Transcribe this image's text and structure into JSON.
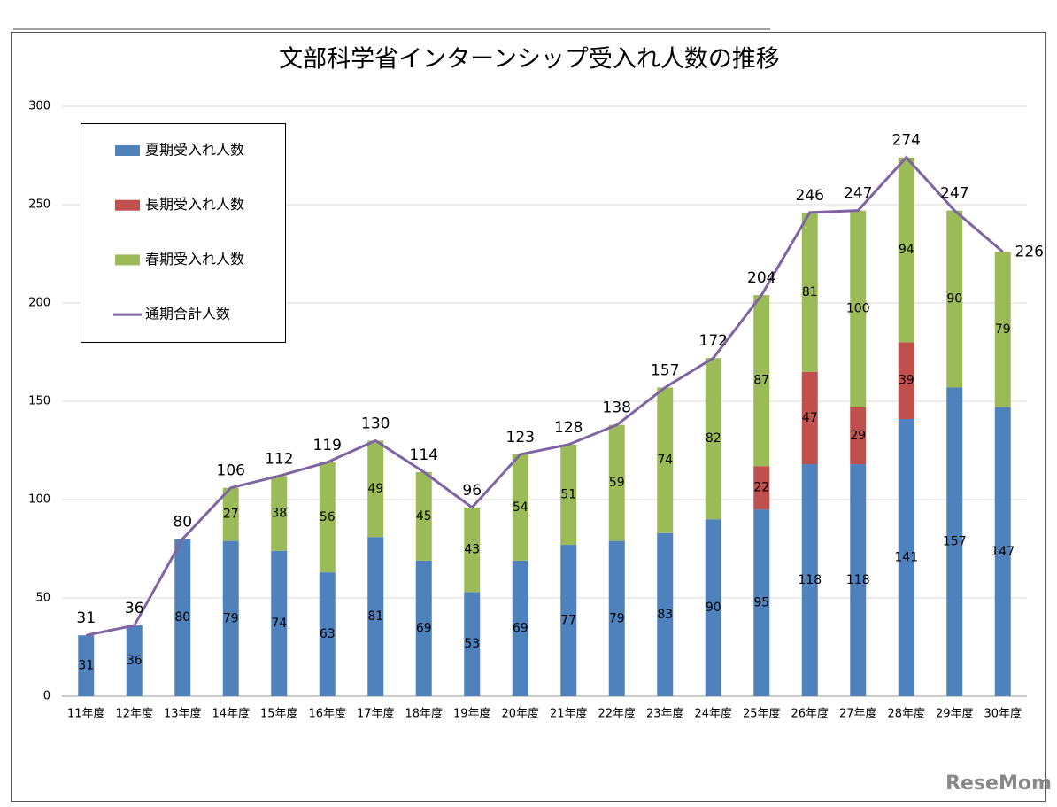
{
  "chart_data": {
    "type": "bar",
    "stacked": true,
    "title": "文部科学省インターンシップ受入れ人数の推移",
    "watermark": "ReseMom",
    "categories": [
      "11年度",
      "12年度",
      "13年度",
      "14年度",
      "15年度",
      "16年度",
      "17年度",
      "18年度",
      "19年度",
      "20年度",
      "21年度",
      "22年度",
      "23年度",
      "24年度",
      "25年度",
      "26年度",
      "27年度",
      "28年度",
      "29年度",
      "30年度"
    ],
    "series": [
      {
        "name": "夏期受入れ人数",
        "color": "#4f81bd",
        "values": [
          31,
          36,
          80,
          79,
          74,
          63,
          81,
          69,
          53,
          69,
          77,
          79,
          83,
          90,
          95,
          118,
          118,
          141,
          157,
          147
        ]
      },
      {
        "name": "長期受入れ人数",
        "color": "#c0504d",
        "values": [
          null,
          null,
          null,
          null,
          null,
          null,
          null,
          null,
          null,
          null,
          null,
          null,
          null,
          null,
          22,
          47,
          29,
          39,
          null,
          null
        ]
      },
      {
        "name": "春期受入れ人数",
        "color": "#9bbb59",
        "values": [
          null,
          null,
          null,
          27,
          38,
          56,
          49,
          45,
          43,
          54,
          51,
          59,
          74,
          82,
          87,
          81,
          100,
          94,
          90,
          79
        ]
      },
      {
        "name": "通期合計人数",
        "color": "#8064a2",
        "type": "line",
        "values": [
          31,
          36,
          80,
          106,
          112,
          119,
          130,
          114,
          96,
          123,
          128,
          138,
          157,
          172,
          204,
          246,
          247,
          274,
          247,
          226
        ]
      }
    ],
    "ylim": [
      0,
      300
    ],
    "yticks": [
      0,
      50,
      100,
      150,
      200,
      250,
      300
    ],
    "grid": true
  }
}
